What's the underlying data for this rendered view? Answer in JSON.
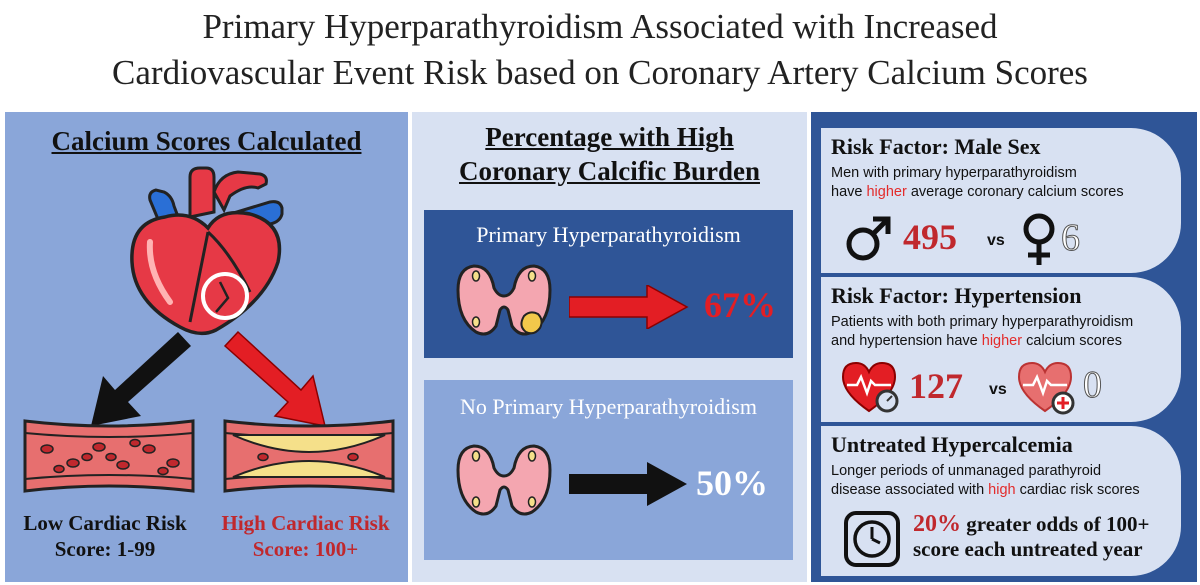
{
  "title": {
    "line1": "Primary Hyperparathyroidism Associated with Increased",
    "line2": "Cardiovascular Event Risk based on Coronary Artery Calcium Scores"
  },
  "left_panel": {
    "header": "Calcium Scores Calculated",
    "low": {
      "label": "Low Cardiac Risk",
      "score": "Score: 1-99"
    },
    "high": {
      "label": "High Cardiac Risk",
      "score": "Score: 100+"
    }
  },
  "middle_panel": {
    "header_line1": "Percentage with High",
    "header_line2": "Coronary Calcific Burden",
    "phpt": {
      "label": "Primary Hyperparathyroidism",
      "percent": "67%"
    },
    "no_phpt": {
      "label": "No Primary Hyperparathyroidism",
      "percent": "50%"
    }
  },
  "right_panel": {
    "male": {
      "title": "Risk Factor: Male Sex",
      "text1": "Men with primary hyperparathyroidism",
      "text2_pre": "have ",
      "text2_hl": "higher",
      "text2_post": " average coronary calcium scores",
      "male_value": "495",
      "vs": "vs",
      "female_value": "6"
    },
    "hypertension": {
      "title": "Risk Factor: Hypertension",
      "text1": "Patients with both primary hyperparathyroidism",
      "text2_pre": "and hypertension have ",
      "text2_hl": "higher",
      "text2_post": " calcium scores",
      "htn_value": "127",
      "vs": "vs",
      "no_htn_value": "0"
    },
    "hypercalcemia": {
      "title": "Untreated Hypercalcemia",
      "text1": "Longer periods of unmanaged parathyroid",
      "text2_pre": "disease associated with ",
      "text2_hl": "high",
      "text2_post": " cardiac risk scores",
      "odds_value": "20%",
      "odds_text1": " greater odds of 100+",
      "odds_text2": "score each untreated year"
    }
  },
  "colors": {
    "accent_red": "#c0282d",
    "dark_blue": "#2f5597",
    "mid_blue": "#8aa6d9",
    "light_blue": "#d8e1f2"
  }
}
